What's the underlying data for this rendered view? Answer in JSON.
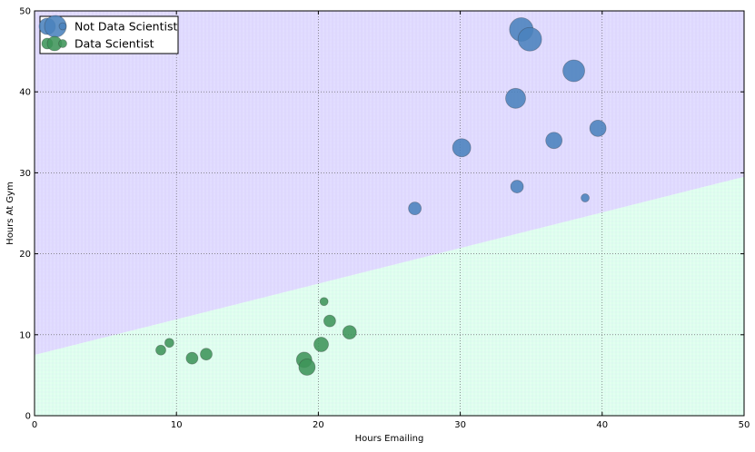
{
  "chart_data": {
    "type": "scatter",
    "title": "",
    "xlabel": "Hours Emailing",
    "ylabel": "Hours At Gym",
    "xlim": [
      0,
      50
    ],
    "ylim": [
      0,
      50
    ],
    "xticks": [
      0,
      10,
      20,
      30,
      40,
      50
    ],
    "yticks": [
      0,
      10,
      20,
      30,
      40,
      50
    ],
    "grid": true,
    "legend_position": "top-left",
    "decision_boundary": {
      "description": "linear classifier regions",
      "line_points": [
        [
          0,
          7.5
        ],
        [
          50,
          29.5
        ]
      ],
      "upper_region_color": "#e2ddff",
      "lower_region_color": "#e2fff0",
      "upper_grid_color": "#c8bff5",
      "lower_grid_color": "#bff5dc"
    },
    "series": [
      {
        "name": "Not Data Scientist",
        "color": "#4a82bd",
        "points": [
          {
            "x": 34.3,
            "y": 47.7,
            "size": 13
          },
          {
            "x": 34.9,
            "y": 46.5,
            "size": 13
          },
          {
            "x": 38.0,
            "y": 42.6,
            "size": 12
          },
          {
            "x": 33.9,
            "y": 39.2,
            "size": 11
          },
          {
            "x": 39.7,
            "y": 35.5,
            "size": 9
          },
          {
            "x": 36.6,
            "y": 34.0,
            "size": 9
          },
          {
            "x": 30.1,
            "y": 33.1,
            "size": 10
          },
          {
            "x": 34.0,
            "y": 28.3,
            "size": 7
          },
          {
            "x": 38.8,
            "y": 26.9,
            "size": 4.5
          },
          {
            "x": 26.8,
            "y": 25.6,
            "size": 7
          }
        ]
      },
      {
        "name": "Data Scientist",
        "color": "#3d9459",
        "points": [
          {
            "x": 20.4,
            "y": 14.1,
            "size": 4.5
          },
          {
            "x": 20.8,
            "y": 11.7,
            "size": 6.5
          },
          {
            "x": 22.2,
            "y": 10.3,
            "size": 7.5
          },
          {
            "x": 9.5,
            "y": 9.0,
            "size": 5
          },
          {
            "x": 20.2,
            "y": 8.8,
            "size": 8
          },
          {
            "x": 8.9,
            "y": 8.1,
            "size": 5.5
          },
          {
            "x": 12.1,
            "y": 7.6,
            "size": 6.5
          },
          {
            "x": 11.1,
            "y": 7.1,
            "size": 6.5
          },
          {
            "x": 19.0,
            "y": 6.9,
            "size": 8.5
          },
          {
            "x": 19.2,
            "y": 6.0,
            "size": 9
          }
        ]
      }
    ]
  }
}
